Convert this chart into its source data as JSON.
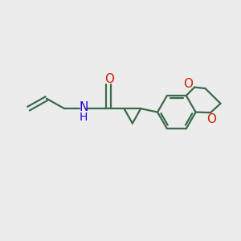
{
  "bg_color": "#ececec",
  "bond_color": "#3a6b4a",
  "o_color": "#cc2200",
  "n_color": "#2200cc",
  "line_width": 1.6,
  "figsize": [
    3.0,
    3.0
  ],
  "dpi": 100,
  "xlim": [
    0,
    10
  ],
  "ylim": [
    0,
    10
  ]
}
